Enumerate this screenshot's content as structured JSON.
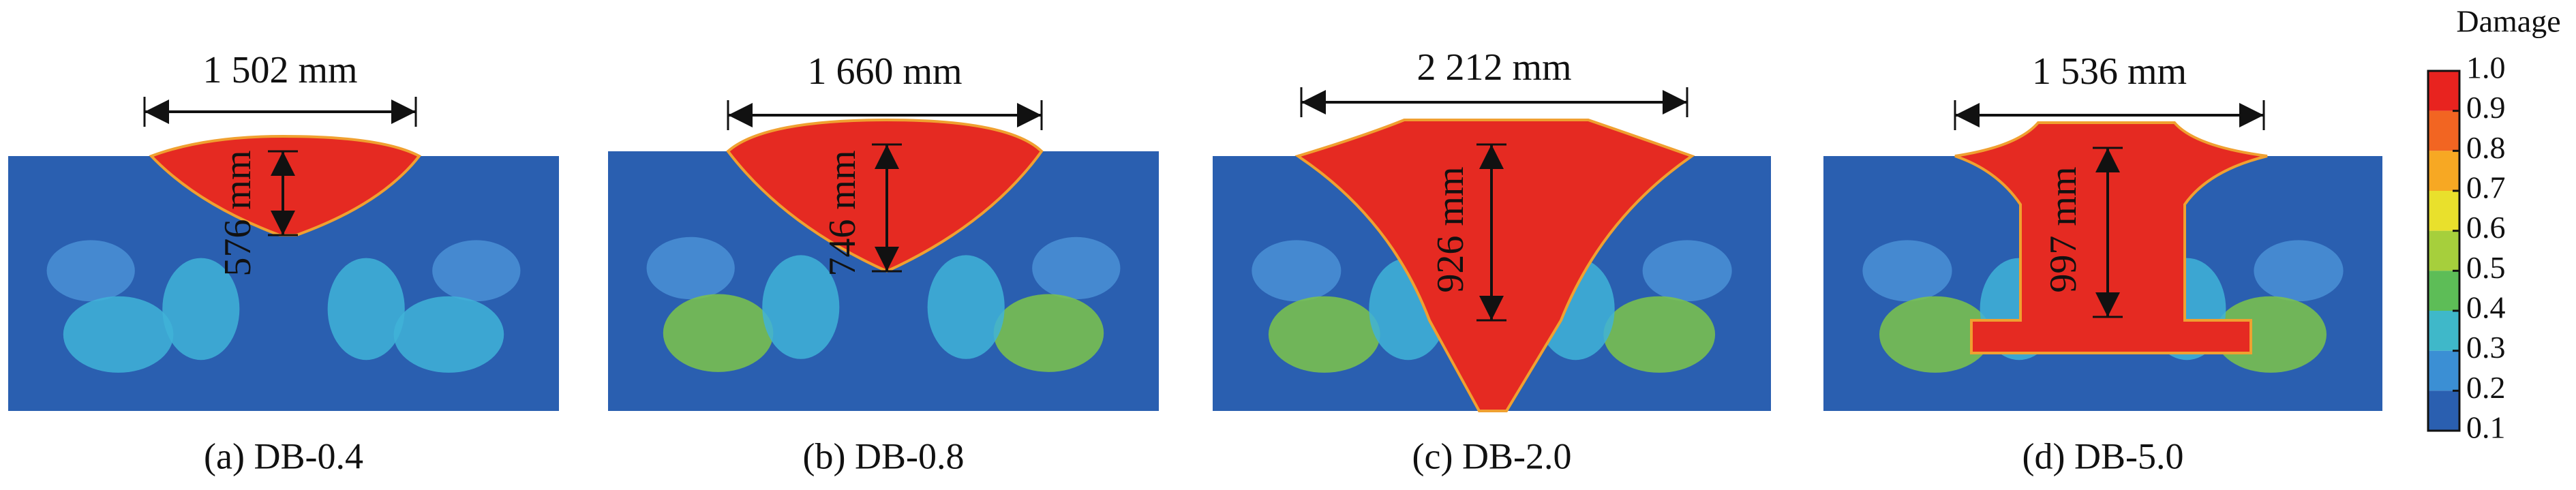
{
  "panels": [
    {
      "width_label": "1 502 mm",
      "depth_label": "576 mm",
      "caption": "(a) DB-0.4"
    },
    {
      "width_label": "1 660 mm",
      "depth_label": "746 mm",
      "caption": "(b) DB-0.8"
    },
    {
      "width_label": "2 212 mm",
      "depth_label": "926 mm",
      "caption": "(c) DB-2.0"
    },
    {
      "width_label": "1 536 mm",
      "depth_label": "997 mm",
      "caption": "(d) DB-5.0"
    }
  ],
  "colorbar": {
    "title": "Damage",
    "ticks": [
      {
        "value": 1,
        "label": "1.0"
      },
      {
        "value": 0.9,
        "label": "0.9"
      },
      {
        "value": 0.8,
        "label": "0.8"
      },
      {
        "value": 0.7,
        "label": "0.7"
      },
      {
        "value": 0.6,
        "label": "0.6"
      },
      {
        "value": 0.5,
        "label": "0.5"
      },
      {
        "value": 0.4,
        "label": "0.4"
      },
      {
        "value": 0.3,
        "label": "0.3"
      },
      {
        "value": 0.2,
        "label": "0.2"
      },
      {
        "value": 0.1,
        "label": "0.1"
      }
    ]
  }
}
